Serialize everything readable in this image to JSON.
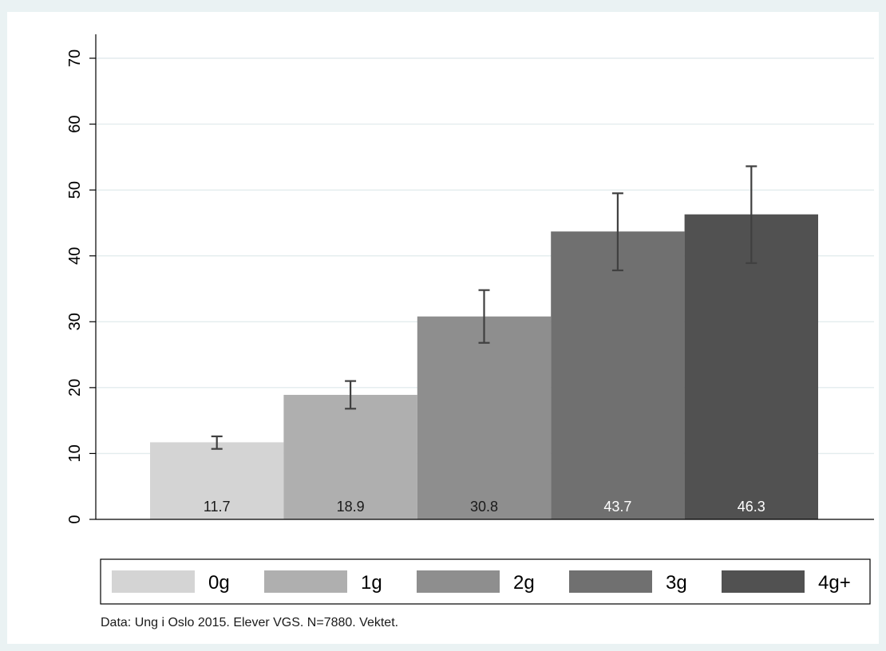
{
  "chart_data": {
    "type": "bar",
    "categories": [
      "0g",
      "1g",
      "2g",
      "3g",
      "4g+"
    ],
    "values": [
      11.7,
      18.9,
      30.8,
      43.7,
      46.3
    ],
    "error_bars": [
      {
        "low": 10.7,
        "high": 12.6
      },
      {
        "low": 16.8,
        "high": 21.0
      },
      {
        "low": 26.8,
        "high": 34.8
      },
      {
        "low": 37.8,
        "high": 49.5
      },
      {
        "low": 38.9,
        "high": 53.6
      }
    ],
    "value_labels": [
      "11.7",
      "18.9",
      "30.8",
      "43.7",
      "46.3"
    ],
    "bar_colors": [
      "#d4d4d4",
      "#afafaf",
      "#8e8e8e",
      "#707070",
      "#515151"
    ],
    "label_colors": [
      "#1a1a1a",
      "#1a1a1a",
      "#1a1a1a",
      "#ffffff",
      "#ffffff"
    ],
    "error_bar_color": "#404040",
    "ylim": [
      0,
      70
    ],
    "yticks": [
      0,
      10,
      20,
      30,
      40,
      50,
      60,
      70
    ],
    "grid": true,
    "grid_color": "#e3ecee",
    "legend": {
      "placement": "bottom",
      "entries": [
        "0g",
        "1g",
        "2g",
        "3g",
        "4g+"
      ]
    },
    "note": "Data: Ung i Oslo 2015. Elever VGS. N=7880. Vektet."
  }
}
